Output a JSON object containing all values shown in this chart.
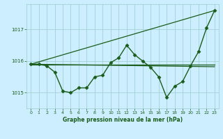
{
  "xlabel": "Graphe pression niveau de la mer (hPa)",
  "bg_color": "#cceeff",
  "plot_bg_color": "#cceeff",
  "grid_color": "#99cccc",
  "line_color": "#1a5c1a",
  "text_color": "#1a5c1a",
  "xlim": [
    -0.5,
    23.5
  ],
  "ylim": [
    1014.5,
    1017.8
  ],
  "xticks": [
    0,
    1,
    2,
    3,
    4,
    5,
    6,
    7,
    8,
    9,
    10,
    11,
    12,
    13,
    14,
    15,
    16,
    17,
    18,
    19,
    20,
    21,
    22,
    23
  ],
  "yticks": [
    1015,
    1016,
    1017
  ],
  "series": [
    {
      "x": [
        0,
        1,
        2,
        3,
        4,
        5,
        6,
        7,
        8,
        9,
        10,
        11,
        12,
        13,
        14,
        15,
        16,
        17,
        18,
        19,
        20,
        21,
        22,
        23
      ],
      "y": [
        1015.9,
        1015.9,
        1015.85,
        1015.65,
        1015.05,
        1015.0,
        1015.15,
        1015.15,
        1015.5,
        1015.55,
        1015.95,
        1016.1,
        1016.5,
        1016.2,
        1016.0,
        1015.8,
        1015.5,
        1014.85,
        1015.2,
        1015.35,
        1015.85,
        1016.3,
        1017.05,
        1017.6
      ],
      "marker": "D",
      "markersize": 2.5,
      "linewidth": 1.0
    },
    {
      "x": [
        0,
        23
      ],
      "y": [
        1015.88,
        1015.88
      ],
      "marker": null,
      "linewidth": 0.9
    },
    {
      "x": [
        0,
        23
      ],
      "y": [
        1015.9,
        1015.82
      ],
      "marker": null,
      "linewidth": 0.9
    },
    {
      "x": [
        0,
        23
      ],
      "y": [
        1015.9,
        1017.6
      ],
      "marker": null,
      "linewidth": 0.9
    }
  ]
}
